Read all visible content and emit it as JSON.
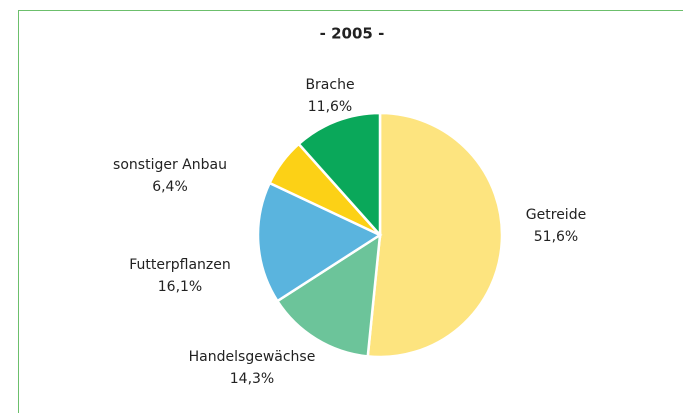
{
  "chart_data": {
    "type": "pie",
    "title": "- 2005 -",
    "categories": [
      "Getreide",
      "Handelsgewächse",
      "Futterpflanzen",
      "sonstiger Anbau",
      "Brache"
    ],
    "values": [
      51.6,
      14.3,
      16.1,
      6.4,
      11.6
    ],
    "value_labels": [
      "51,6%",
      "14,3%",
      "16,1%",
      "6,4%",
      "11,6%"
    ],
    "colors": [
      "#fde47f",
      "#6cc49a",
      "#5ab4de",
      "#fcd116",
      "#0aa85a"
    ]
  }
}
